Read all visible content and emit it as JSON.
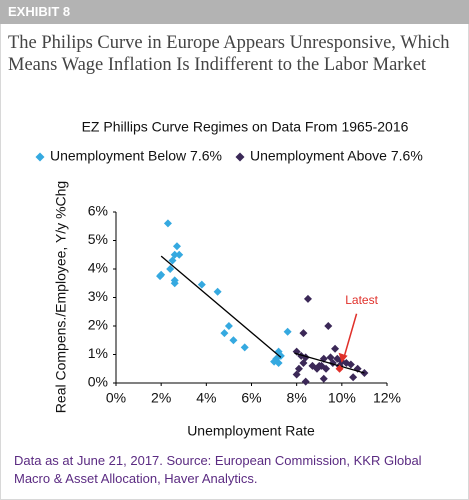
{
  "header": {
    "label": "EXHIBIT 8",
    "title": "The Philips Curve in Europe Appears Unresponsive, Which Means Wage Inflation Is Indifferent to the Labor Market"
  },
  "chart_data": {
    "type": "scatter",
    "title": "EZ Phillips Curve Regimes on Data From 1965-2016",
    "x_label": "Unemployment Rate",
    "y_label": "Real Compens./Employee, Y/y %Chg",
    "marker": "diamond",
    "series": [
      {
        "name": "Unemployment Below 7.6%",
        "color": "#35a9e0",
        "x": [
          2.3,
          2.7,
          2.6,
          2.8,
          2.5,
          2.4,
          2.0,
          1.95,
          2.6,
          2.6,
          3.8,
          4.5,
          5.0,
          4.8,
          5.2,
          5.7,
          7.2,
          7.1,
          7.0,
          7.2,
          7.6,
          7.3
        ],
        "values": [
          5.6,
          4.8,
          4.5,
          4.5,
          4.3,
          4.0,
          3.8,
          3.75,
          3.6,
          3.5,
          3.45,
          3.2,
          2.0,
          1.75,
          1.5,
          1.25,
          1.1,
          0.85,
          0.75,
          0.7,
          1.8,
          0.95
        ]
      },
      {
        "name": "Unemployment Above 7.6%",
        "color": "#3b2857",
        "x": [
          8.5,
          8.3,
          8.0,
          8.2,
          8.4,
          8.3,
          8.1,
          8.0,
          8.4,
          8.7,
          8.9,
          9.0,
          9.2,
          9.3,
          9.5,
          9.7,
          9.8,
          9.4,
          9.2,
          9.6,
          10.0,
          10.2,
          10.4,
          10.5,
          10.7,
          11.0,
          9.1,
          9.9
        ],
        "values": [
          2.95,
          1.75,
          1.1,
          0.95,
          0.9,
          0.7,
          0.5,
          0.3,
          0.05,
          0.6,
          0.5,
          0.6,
          0.85,
          0.5,
          0.9,
          1.2,
          0.85,
          2.0,
          0.15,
          0.7,
          0.75,
          0.7,
          0.65,
          0.2,
          0.5,
          0.35,
          0.6,
          0.6
        ]
      }
    ],
    "trend_lines": [
      {
        "x": [
          2.0,
          7.3
        ],
        "values": [
          4.45,
          0.9
        ]
      },
      {
        "x": [
          7.9,
          11.0
        ],
        "values": [
          1.05,
          0.35
        ]
      }
    ],
    "annotation": {
      "text": "Latest",
      "x": 9.9,
      "y": 0.5,
      "color": "#e0302a"
    },
    "xlim": [
      0,
      12
    ],
    "xticks": [
      {
        "value": 0,
        "label": "0%"
      },
      {
        "value": 2,
        "label": "2%"
      },
      {
        "value": 4,
        "label": "4%"
      },
      {
        "value": 6,
        "label": "6%"
      },
      {
        "value": 8,
        "label": "8%"
      },
      {
        "value": 10,
        "label": "10%"
      },
      {
        "value": 12,
        "label": "12%"
      }
    ],
    "ylim": [
      0,
      6
    ],
    "yticks": [
      {
        "value": 0,
        "label": "0%"
      },
      {
        "value": 1,
        "label": "1%"
      },
      {
        "value": 2,
        "label": "2%"
      },
      {
        "value": 3,
        "label": "3%"
      },
      {
        "value": 4,
        "label": "4%"
      },
      {
        "value": 5,
        "label": "5%"
      },
      {
        "value": 6,
        "label": "6%"
      }
    ],
    "grid": false
  },
  "footer": {
    "source": "Data as at June 21, 2017. Source: European Commission, KKR Global Macro & Asset Allocation, Haver Analytics."
  }
}
